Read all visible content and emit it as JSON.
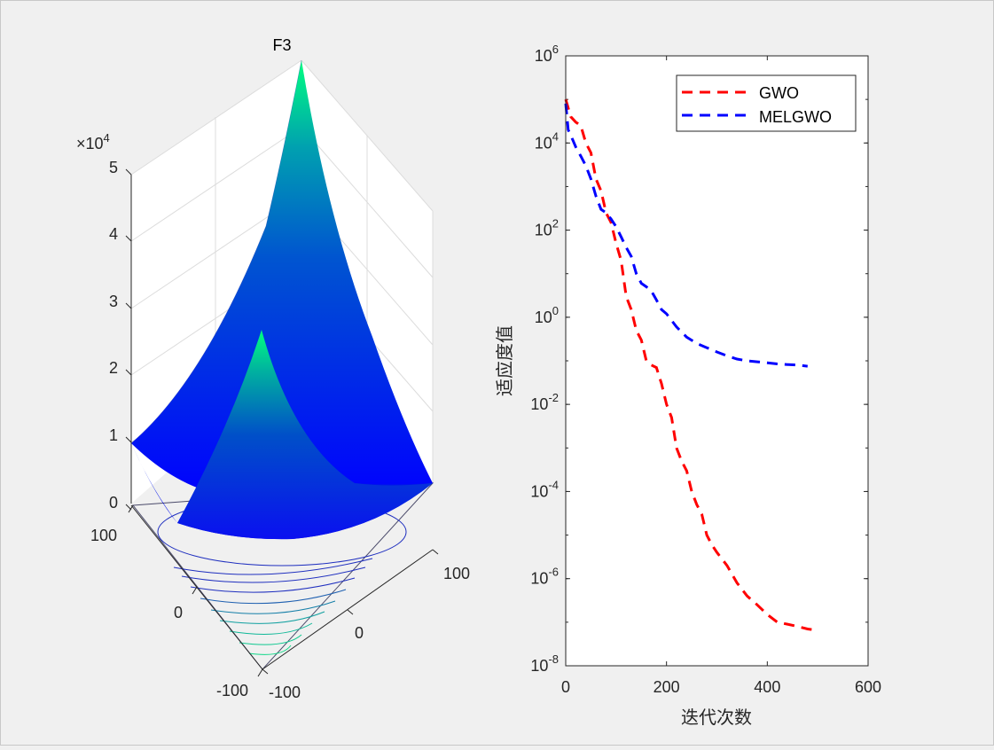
{
  "window": {
    "background": "#f0f0f0"
  },
  "left_plot": {
    "title": "F3",
    "z_exponent_label": "×10",
    "z_exponent_power": "4",
    "z_ticks": [
      "0",
      "1",
      "2",
      "3",
      "4",
      "5"
    ],
    "x_ticks": [
      "100",
      "0",
      "-100"
    ],
    "y_ticks": [
      "100",
      "0",
      "-100"
    ],
    "colormap": [
      "#0000ff",
      "#00ff80"
    ]
  },
  "chart_data": {
    "type": "line",
    "xlabel": "迭代次数",
    "ylabel": "适应度值",
    "xlim": [
      0,
      600
    ],
    "ylim": [
      1e-08,
      1000000.0
    ],
    "yscale": "log",
    "x_ticks": [
      "0",
      "200",
      "400",
      "600"
    ],
    "y_ticks": [
      {
        "base": "10",
        "exp": "-8",
        "value": 1e-08
      },
      {
        "base": "10",
        "exp": "-6",
        "value": 1e-06
      },
      {
        "base": "10",
        "exp": "-4",
        "value": 0.0001
      },
      {
        "base": "10",
        "exp": "-2",
        "value": 0.01
      },
      {
        "base": "10",
        "exp": "0",
        "value": 1
      },
      {
        "base": "10",
        "exp": "2",
        "value": 100.0
      },
      {
        "base": "10",
        "exp": "4",
        "value": 10000.0
      },
      {
        "base": "10",
        "exp": "6",
        "value": 1000000.0
      }
    ],
    "legend_position": "top-right",
    "series": [
      {
        "name": "GWO",
        "color": "#ff0000",
        "style": "dashed",
        "x": [
          0,
          10,
          20,
          30,
          40,
          50,
          60,
          70,
          80,
          90,
          100,
          110,
          120,
          130,
          140,
          150,
          160,
          170,
          180,
          190,
          200,
          210,
          220,
          230,
          240,
          250,
          260,
          270,
          280,
          290,
          300,
          320,
          340,
          360,
          380,
          400,
          420,
          440,
          460,
          480,
          500
        ],
        "y": [
          100000.0,
          40000.0,
          30000.0,
          25000.0,
          10000.0,
          6000.0,
          1500.0,
          800,
          250,
          150,
          50,
          20,
          3,
          1.5,
          0.5,
          0.3,
          0.1,
          0.08,
          0.07,
          0.03,
          0.01,
          0.005,
          0.001,
          0.0005,
          0.0003,
          0.0001,
          5e-05,
          3e-05,
          1e-05,
          6e-06,
          4e-06,
          2e-06,
          8e-07,
          4e-07,
          2.5e-07,
          1.5e-07,
          1e-07,
          9e-08,
          8e-08,
          7e-08,
          6.5e-08
        ]
      },
      {
        "name": "MELGWO",
        "color": "#0000ff",
        "style": "dashed",
        "x": [
          0,
          5,
          10,
          20,
          30,
          40,
          50,
          60,
          70,
          80,
          90,
          100,
          110,
          120,
          130,
          140,
          150,
          160,
          170,
          180,
          190,
          200,
          220,
          240,
          260,
          280,
          300,
          320,
          340,
          360,
          380,
          400,
          420,
          440,
          460,
          480
        ],
        "y": [
          80000.0,
          20000.0,
          15000.0,
          8000.0,
          5000.0,
          3000.0,
          1500.0,
          600,
          300,
          250,
          180,
          120,
          70,
          40,
          25,
          10,
          6,
          5,
          4,
          2.5,
          1.5,
          1.2,
          0.6,
          0.35,
          0.25,
          0.2,
          0.16,
          0.13,
          0.11,
          0.1,
          0.095,
          0.09,
          0.085,
          0.082,
          0.08,
          0.075
        ]
      }
    ]
  }
}
